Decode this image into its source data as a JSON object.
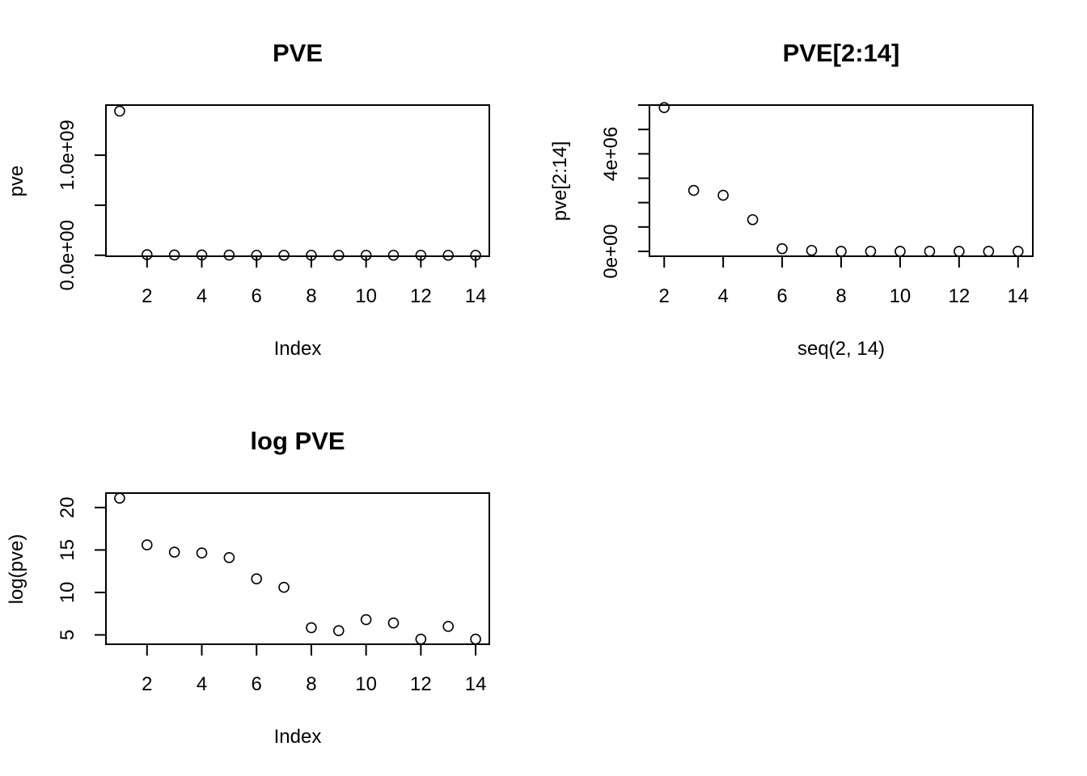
{
  "chart_data": [
    {
      "type": "scatter",
      "title": "PVE",
      "xlabel": "Index",
      "ylabel": "pve",
      "x": [
        1,
        2,
        3,
        4,
        5,
        6,
        7,
        8,
        9,
        10,
        11,
        12,
        13,
        14
      ],
      "y": [
        1440000000,
        5900000,
        2500000,
        2300000,
        1300000,
        110000,
        40000,
        340,
        250,
        900,
        600,
        90,
        400,
        90
      ],
      "xlim": [
        0.5,
        14.5
      ],
      "ylim": [
        -10000000,
        1500000000
      ],
      "xticks": [
        2,
        4,
        6,
        8,
        10,
        12,
        14
      ],
      "yticks": [
        0,
        500000000,
        1000000000
      ],
      "ytick_labels": [
        "0.0e+00",
        "",
        "1.0e+09"
      ],
      "marker": "open-circle",
      "grid": false
    },
    {
      "type": "scatter",
      "title": "PVE[2:14]",
      "xlabel": "seq(2, 14)",
      "ylabel": "pve[2:14]",
      "x": [
        2,
        3,
        4,
        5,
        6,
        7,
        8,
        9,
        10,
        11,
        12,
        13,
        14
      ],
      "y": [
        5900000,
        2500000,
        2300000,
        1300000,
        110000,
        40000,
        340,
        250,
        900,
        600,
        90,
        400,
        90
      ],
      "xlim": [
        1.5,
        14.5
      ],
      "ylim": [
        -200000,
        6000000
      ],
      "xticks": [
        2,
        4,
        6,
        8,
        10,
        12,
        14
      ],
      "yticks": [
        0,
        1000000,
        2000000,
        3000000,
        4000000,
        5000000,
        6000000
      ],
      "ytick_labels": [
        "0e+00",
        "",
        "",
        "",
        "4e+06",
        "",
        ""
      ],
      "marker": "open-circle",
      "grid": false
    },
    {
      "type": "scatter",
      "title": "log PVE",
      "xlabel": "Index",
      "ylabel": "log(pve)",
      "x": [
        1,
        2,
        3,
        4,
        5,
        6,
        7,
        8,
        9,
        10,
        11,
        12,
        13,
        14
      ],
      "y": [
        21.1,
        15.6,
        14.75,
        14.65,
        14.1,
        11.6,
        10.6,
        5.85,
        5.5,
        6.8,
        6.4,
        4.5,
        6.0,
        4.5
      ],
      "xlim": [
        0.5,
        14.5
      ],
      "ylim": [
        3.9,
        21.7
      ],
      "xticks": [
        2,
        4,
        6,
        8,
        10,
        12,
        14
      ],
      "yticks": [
        5,
        10,
        15,
        20
      ],
      "ytick_labels": [
        "5",
        "10",
        "15",
        "20"
      ],
      "marker": "open-circle",
      "grid": false
    }
  ]
}
